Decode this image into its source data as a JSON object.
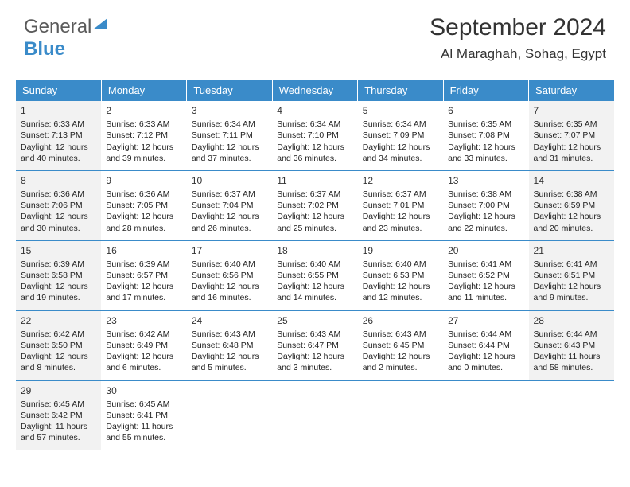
{
  "brand": {
    "part1": "General",
    "part2": "Blue"
  },
  "header": {
    "month": "September 2024",
    "location": "Al Maraghah, Sohag, Egypt"
  },
  "colors": {
    "accent": "#3a8bc9",
    "header_text": "#ffffff",
    "shade": "#f2f2f2",
    "text": "#222222"
  },
  "dayNames": [
    "Sunday",
    "Monday",
    "Tuesday",
    "Wednesday",
    "Thursday",
    "Friday",
    "Saturday"
  ],
  "weeks": [
    [
      {
        "n": "1",
        "shade": true,
        "sr": "Sunrise: 6:33 AM",
        "ss": "Sunset: 7:13 PM",
        "d1": "Daylight: 12 hours",
        "d2": "and 40 minutes."
      },
      {
        "n": "2",
        "sr": "Sunrise: 6:33 AM",
        "ss": "Sunset: 7:12 PM",
        "d1": "Daylight: 12 hours",
        "d2": "and 39 minutes."
      },
      {
        "n": "3",
        "sr": "Sunrise: 6:34 AM",
        "ss": "Sunset: 7:11 PM",
        "d1": "Daylight: 12 hours",
        "d2": "and 37 minutes."
      },
      {
        "n": "4",
        "sr": "Sunrise: 6:34 AM",
        "ss": "Sunset: 7:10 PM",
        "d1": "Daylight: 12 hours",
        "d2": "and 36 minutes."
      },
      {
        "n": "5",
        "sr": "Sunrise: 6:34 AM",
        "ss": "Sunset: 7:09 PM",
        "d1": "Daylight: 12 hours",
        "d2": "and 34 minutes."
      },
      {
        "n": "6",
        "sr": "Sunrise: 6:35 AM",
        "ss": "Sunset: 7:08 PM",
        "d1": "Daylight: 12 hours",
        "d2": "and 33 minutes."
      },
      {
        "n": "7",
        "shade": true,
        "sr": "Sunrise: 6:35 AM",
        "ss": "Sunset: 7:07 PM",
        "d1": "Daylight: 12 hours",
        "d2": "and 31 minutes."
      }
    ],
    [
      {
        "n": "8",
        "shade": true,
        "sr": "Sunrise: 6:36 AM",
        "ss": "Sunset: 7:06 PM",
        "d1": "Daylight: 12 hours",
        "d2": "and 30 minutes."
      },
      {
        "n": "9",
        "sr": "Sunrise: 6:36 AM",
        "ss": "Sunset: 7:05 PM",
        "d1": "Daylight: 12 hours",
        "d2": "and 28 minutes."
      },
      {
        "n": "10",
        "sr": "Sunrise: 6:37 AM",
        "ss": "Sunset: 7:04 PM",
        "d1": "Daylight: 12 hours",
        "d2": "and 26 minutes."
      },
      {
        "n": "11",
        "sr": "Sunrise: 6:37 AM",
        "ss": "Sunset: 7:02 PM",
        "d1": "Daylight: 12 hours",
        "d2": "and 25 minutes."
      },
      {
        "n": "12",
        "sr": "Sunrise: 6:37 AM",
        "ss": "Sunset: 7:01 PM",
        "d1": "Daylight: 12 hours",
        "d2": "and 23 minutes."
      },
      {
        "n": "13",
        "sr": "Sunrise: 6:38 AM",
        "ss": "Sunset: 7:00 PM",
        "d1": "Daylight: 12 hours",
        "d2": "and 22 minutes."
      },
      {
        "n": "14",
        "shade": true,
        "sr": "Sunrise: 6:38 AM",
        "ss": "Sunset: 6:59 PM",
        "d1": "Daylight: 12 hours",
        "d2": "and 20 minutes."
      }
    ],
    [
      {
        "n": "15",
        "shade": true,
        "sr": "Sunrise: 6:39 AM",
        "ss": "Sunset: 6:58 PM",
        "d1": "Daylight: 12 hours",
        "d2": "and 19 minutes."
      },
      {
        "n": "16",
        "sr": "Sunrise: 6:39 AM",
        "ss": "Sunset: 6:57 PM",
        "d1": "Daylight: 12 hours",
        "d2": "and 17 minutes."
      },
      {
        "n": "17",
        "sr": "Sunrise: 6:40 AM",
        "ss": "Sunset: 6:56 PM",
        "d1": "Daylight: 12 hours",
        "d2": "and 16 minutes."
      },
      {
        "n": "18",
        "sr": "Sunrise: 6:40 AM",
        "ss": "Sunset: 6:55 PM",
        "d1": "Daylight: 12 hours",
        "d2": "and 14 minutes."
      },
      {
        "n": "19",
        "sr": "Sunrise: 6:40 AM",
        "ss": "Sunset: 6:53 PM",
        "d1": "Daylight: 12 hours",
        "d2": "and 12 minutes."
      },
      {
        "n": "20",
        "sr": "Sunrise: 6:41 AM",
        "ss": "Sunset: 6:52 PM",
        "d1": "Daylight: 12 hours",
        "d2": "and 11 minutes."
      },
      {
        "n": "21",
        "shade": true,
        "sr": "Sunrise: 6:41 AM",
        "ss": "Sunset: 6:51 PM",
        "d1": "Daylight: 12 hours",
        "d2": "and 9 minutes."
      }
    ],
    [
      {
        "n": "22",
        "shade": true,
        "sr": "Sunrise: 6:42 AM",
        "ss": "Sunset: 6:50 PM",
        "d1": "Daylight: 12 hours",
        "d2": "and 8 minutes."
      },
      {
        "n": "23",
        "sr": "Sunrise: 6:42 AM",
        "ss": "Sunset: 6:49 PM",
        "d1": "Daylight: 12 hours",
        "d2": "and 6 minutes."
      },
      {
        "n": "24",
        "sr": "Sunrise: 6:43 AM",
        "ss": "Sunset: 6:48 PM",
        "d1": "Daylight: 12 hours",
        "d2": "and 5 minutes."
      },
      {
        "n": "25",
        "sr": "Sunrise: 6:43 AM",
        "ss": "Sunset: 6:47 PM",
        "d1": "Daylight: 12 hours",
        "d2": "and 3 minutes."
      },
      {
        "n": "26",
        "sr": "Sunrise: 6:43 AM",
        "ss": "Sunset: 6:45 PM",
        "d1": "Daylight: 12 hours",
        "d2": "and 2 minutes."
      },
      {
        "n": "27",
        "sr": "Sunrise: 6:44 AM",
        "ss": "Sunset: 6:44 PM",
        "d1": "Daylight: 12 hours",
        "d2": "and 0 minutes."
      },
      {
        "n": "28",
        "shade": true,
        "sr": "Sunrise: 6:44 AM",
        "ss": "Sunset: 6:43 PM",
        "d1": "Daylight: 11 hours",
        "d2": "and 58 minutes."
      }
    ],
    [
      {
        "n": "29",
        "shade": true,
        "sr": "Sunrise: 6:45 AM",
        "ss": "Sunset: 6:42 PM",
        "d1": "Daylight: 11 hours",
        "d2": "and 57 minutes."
      },
      {
        "n": "30",
        "sr": "Sunrise: 6:45 AM",
        "ss": "Sunset: 6:41 PM",
        "d1": "Daylight: 11 hours",
        "d2": "and 55 minutes."
      },
      {
        "empty": true
      },
      {
        "empty": true
      },
      {
        "empty": true
      },
      {
        "empty": true
      },
      {
        "empty": true
      }
    ]
  ]
}
